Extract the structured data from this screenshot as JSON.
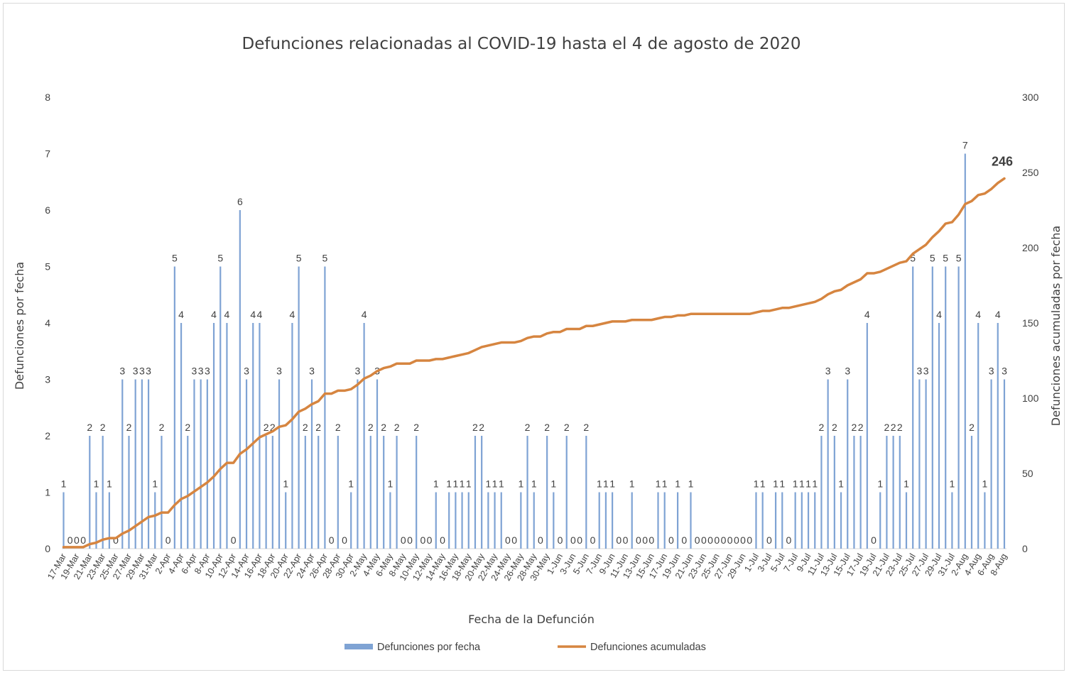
{
  "chart_data": {
    "type": "bar+line",
    "title": "Defunciones relacionadas al COVID-19 hasta el 4 de agosto de 2020",
    "xlabel": "Fecha de la Defunción",
    "ylabel_left": "Defunciones por fecha",
    "ylabel_right": "Defunciones acumuladas por fecha",
    "ylim_left": [
      0,
      8
    ],
    "ylim_right": [
      0,
      300
    ],
    "yticks_left": [
      "0",
      "1",
      "2",
      "3",
      "4",
      "5",
      "6",
      "7",
      "8"
    ],
    "yticks_right": [
      "0",
      "50",
      "100",
      "150",
      "200",
      "250",
      "300"
    ],
    "legend_position": "bottom",
    "start_date": "2020-03-17",
    "series": [
      {
        "name": "Defunciones por fecha",
        "type": "bar",
        "color": "#7fa3d4",
        "values": [
          1,
          0,
          0,
          0,
          2,
          1,
          2,
          1,
          0,
          3,
          2,
          3,
          3,
          3,
          1,
          2,
          0,
          5,
          4,
          2,
          3,
          3,
          3,
          4,
          5,
          4,
          0,
          6,
          3,
          4,
          4,
          2,
          2,
          3,
          1,
          4,
          5,
          2,
          3,
          2,
          5,
          0,
          2,
          0,
          1,
          3,
          4,
          2,
          3,
          2,
          1,
          2,
          0,
          0,
          2,
          0,
          0,
          1,
          0,
          1,
          1,
          1,
          1,
          2,
          2,
          1,
          1,
          1,
          0,
          0,
          1,
          2,
          1,
          0,
          2,
          1,
          0,
          2,
          0,
          0,
          2,
          0,
          1,
          1,
          1,
          0,
          0,
          1,
          0,
          0,
          0,
          1,
          1,
          0,
          1,
          0,
          1,
          0,
          0,
          0,
          0,
          0,
          0,
          0,
          0,
          0,
          1,
          1,
          0,
          1,
          1,
          0,
          1,
          1,
          1,
          1,
          2,
          3,
          2,
          1,
          3,
          2,
          2,
          4,
          0,
          1,
          2,
          2,
          2,
          1,
          5,
          3,
          3,
          5,
          4,
          5,
          1,
          5,
          7,
          2,
          4,
          1,
          3,
          4,
          3
        ]
      },
      {
        "name": "Defunciones acumuladas",
        "type": "line",
        "color": "#d68540",
        "final_value_label": "246"
      }
    ]
  }
}
